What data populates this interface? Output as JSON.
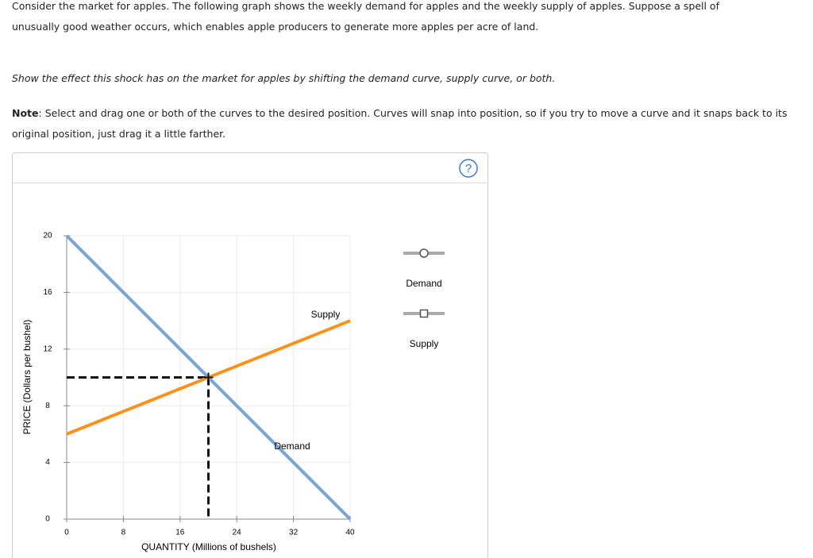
{
  "prompt": [
    "Consider the market for apples. The following graph shows the weekly demand for apples and the weekly supply of apples. Suppose a spell of",
    "unusually good weather occurs, which enables apple producers to generate more apples per acre of land."
  ],
  "instruction": "Show the effect this shock has on the market for apples by shifting the demand curve, supply curve, or both.",
  "note": {
    "label": "Note",
    "text": ": Select and drag one or both of the curves to the desired position. Curves will snap into position, so if you try to move a curve and it snaps back to its original position, just drag it a little farther."
  },
  "help": "?",
  "chart_data": {
    "type": "line",
    "x_label": "QUANTITY (Millions of bushels)",
    "y_label": "PRICE (Dollars per bushel)",
    "xlim": [
      0,
      40
    ],
    "xticks": [
      0,
      8,
      16,
      24,
      32,
      40
    ],
    "ylim": [
      0,
      20
    ],
    "yticks": [
      0,
      4,
      8,
      12,
      16,
      20
    ],
    "grid": true,
    "series": [
      {
        "name": "Demand",
        "color": "#7ba3d6",
        "x": [
          0,
          40
        ],
        "values": [
          20,
          0
        ]
      },
      {
        "name": "Supply",
        "color": "#f7931e",
        "x": [
          0,
          40
        ],
        "values": [
          6,
          14
        ]
      }
    ],
    "equilibrium": {
      "x": 20,
      "y": 10
    }
  }
}
